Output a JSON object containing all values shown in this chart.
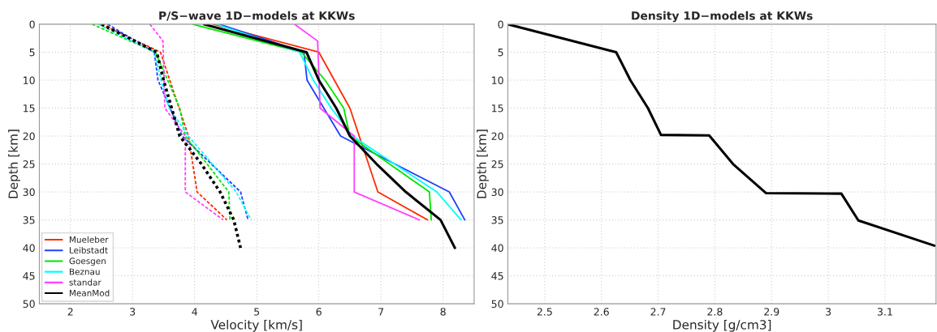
{
  "chart_data": [
    {
      "type": "line",
      "title": "P/S−wave 1D−models at KKWs",
      "xlabel": "Velocity [km/s]",
      "ylabel": "Depth [km]",
      "xlim": [
        1.5,
        8.5
      ],
      "xticks": [
        2,
        3,
        4,
        5,
        6,
        7,
        8
      ],
      "ylim": [
        50,
        0
      ],
      "yticks": [
        0,
        5,
        10,
        15,
        20,
        25,
        30,
        35,
        40,
        45,
        50
      ],
      "grid": true,
      "legend": "bottom left",
      "series": [
        {
          "name": "Mueleber",
          "color": "#ff2a00",
          "x": [
            4.3,
            6.0,
            6.5,
            6.95,
            7.75
          ],
          "values": [
            0,
            5,
            15,
            30,
            35
          ]
        },
        {
          "name": "Leibstadt",
          "color": "#1f3fff",
          "x": [
            4.4,
            5.76,
            5.81,
            6.35,
            8.1,
            8.35
          ],
          "values": [
            0,
            5,
            10,
            20,
            30,
            35
          ]
        },
        {
          "name": "Goesgen",
          "color": "#00e600",
          "x": [
            3.97,
            5.72,
            6.1,
            6.4,
            6.5,
            7.78,
            7.81
          ],
          "values": [
            0,
            5,
            10,
            15,
            20,
            30,
            35
          ]
        },
        {
          "name": "Beznau",
          "color": "#00ffff",
          "x": [
            4.35,
            5.69,
            5.91,
            6.2,
            6.54,
            7.9,
            8.29
          ],
          "values": [
            0,
            5,
            10,
            15,
            20,
            30,
            35
          ]
        },
        {
          "name": "standar",
          "color": "#ff40ff",
          "x": [
            5.61,
            5.98,
            6.02,
            6.57,
            6.57,
            7.62
          ],
          "values": [
            0,
            3,
            15,
            20,
            30,
            35
          ]
        },
        {
          "name": "MeanMod",
          "color": "#000000",
          "x": [
            4.15,
            5.8,
            6.0,
            6.28,
            6.5,
            6.93,
            7.4,
            7.96,
            8.19
          ],
          "values": [
            0,
            5,
            10,
            15,
            20,
            25,
            30,
            35,
            40
          ]
        },
        {
          "color": "#ff2a00",
          "line_style": "dashed",
          "x": [
            2.5,
            3.45,
            3.75,
            3.9,
            4.04,
            4.52
          ],
          "values": [
            0,
            5,
            15,
            20,
            30,
            35
          ]
        },
        {
          "color": "#1f3fff",
          "line_style": "dashed",
          "x": [
            2.6,
            3.35,
            3.41,
            3.8,
            4.74,
            4.86
          ],
          "values": [
            0,
            5,
            10,
            20,
            30,
            35
          ]
        },
        {
          "color": "#00e600",
          "line_style": "dashed",
          "x": [
            2.35,
            3.37,
            3.76,
            3.85,
            4.55,
            4.57
          ],
          "values": [
            0,
            5,
            15,
            20,
            30,
            35
          ]
        },
        {
          "color": "#00ffff",
          "line_style": "dashed",
          "x": [
            2.45,
            3.35,
            3.46,
            3.59,
            3.9,
            4.67,
            4.91
          ],
          "values": [
            0,
            5,
            10,
            15,
            20,
            30,
            35
          ]
        },
        {
          "color": "#ff40ff",
          "line_style": "dashed",
          "x": [
            3.28,
            3.49,
            3.52,
            3.85,
            3.85,
            4.46
          ],
          "values": [
            0,
            3,
            15,
            20,
            30,
            35
          ]
        },
        {
          "color": "#000000",
          "line_style": "dotted",
          "x": [
            2.5,
            3.39,
            3.5,
            3.63,
            3.76,
            4.11,
            4.41,
            4.63,
            4.74
          ],
          "values": [
            0,
            5,
            10,
            15,
            20,
            25,
            30,
            35,
            40
          ]
        }
      ]
    },
    {
      "type": "line",
      "title": "Density 1D−models at KKWs",
      "xlabel": "Density [g/cm3]",
      "ylabel": "Depth [km]",
      "xlim": [
        2.435,
        3.19
      ],
      "xticks": [
        2.5,
        2.6,
        2.7,
        2.8,
        2.9,
        3,
        3.1
      ],
      "ylim": [
        50,
        0
      ],
      "yticks": [
        0,
        5,
        10,
        15,
        20,
        25,
        30,
        35,
        40,
        45,
        50
      ],
      "grid": true,
      "series": [
        {
          "color": "#000000",
          "x": [
            2.435,
            2.626,
            2.651,
            2.682,
            2.705,
            2.79,
            2.832,
            2.89,
            3.023,
            3.053,
            3.187
          ],
          "values": [
            0,
            5,
            10,
            15,
            19.8,
            19.9,
            25,
            30.2,
            30.3,
            35.1,
            39.6
          ]
        }
      ]
    }
  ]
}
